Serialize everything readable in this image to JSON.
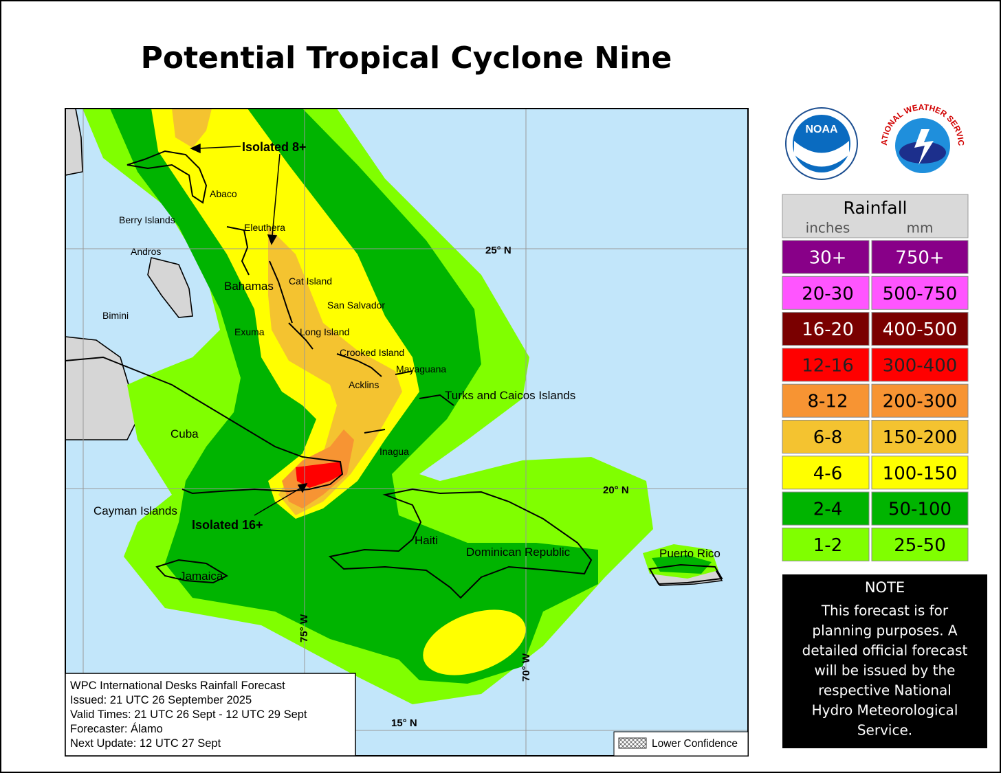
{
  "title": "Potential Tropical Cyclone Nine",
  "places": [
    "Abaco",
    "Berry Islands",
    "Eleuthera",
    "Andros",
    "Bahamas",
    "Cat Island",
    "San Salvador",
    "Bimini",
    "Exuma",
    "Long Island",
    "Crooked Island",
    "Mayaguana",
    "Acklins",
    "Turks and Caicos Islands",
    "Cuba",
    "Inagua",
    "Cayman Islands",
    "Haiti",
    "Dominican Republic",
    "Puerto Rico",
    "Jamaica"
  ],
  "annotations": [
    "Isolated 8+",
    "Isolated 16+"
  ],
  "gridlabels": [
    "25° N",
    "20° N",
    "15° N",
    "75° W",
    "70° W"
  ],
  "info": [
    "WPC International Desks Rainfall Forecast",
    "Issued: 21 UTC 26 September 2025",
    "Valid Times: 21 UTC 26 Sept - 12 UTC 29 Sept",
    "Forecaster: Álamo",
    "Next Update: 12 UTC 27 Sept"
  ],
  "lower_confidence": "Lower Confidence",
  "logos": {
    "noaa": "NOAA",
    "nws": "NATIONAL WEATHER SERVICE"
  },
  "legend": {
    "title": "Rainfall",
    "units": [
      "inches",
      "mm"
    ],
    "rows": [
      {
        "inches": "30+",
        "mm": "750+",
        "color": "#880088",
        "text_color": "#ffffff"
      },
      {
        "inches": "20-30",
        "mm": "500-750",
        "color": "#ff55ff",
        "text_color": "#000000"
      },
      {
        "inches": "16-20",
        "mm": "400-500",
        "color": "#7a0000",
        "text_color": "#ffffff"
      },
      {
        "inches": "12-16",
        "mm": "300-400",
        "color": "#ff0000",
        "text_color": "#222222"
      },
      {
        "inches": "8-12",
        "mm": "200-300",
        "color": "#f79433",
        "text_color": "#000000"
      },
      {
        "inches": "6-8",
        "mm": "150-200",
        "color": "#f4c330",
        "text_color": "#000000"
      },
      {
        "inches": "4-6",
        "mm": "100-150",
        "color": "#ffff00",
        "text_color": "#000000"
      },
      {
        "inches": "2-4",
        "mm": "50-100",
        "color": "#00b400",
        "text_color": "#000000"
      },
      {
        "inches": "1-2",
        "mm": "25-50",
        "color": "#80ff00",
        "text_color": "#000000"
      }
    ]
  },
  "note": {
    "title": "NOTE",
    "lines": [
      "This forecast is for",
      "planning purposes. A",
      "detailed official forecast",
      "will be issued by the",
      "respective National",
      "Hydro Meteorological",
      "Service."
    ]
  }
}
